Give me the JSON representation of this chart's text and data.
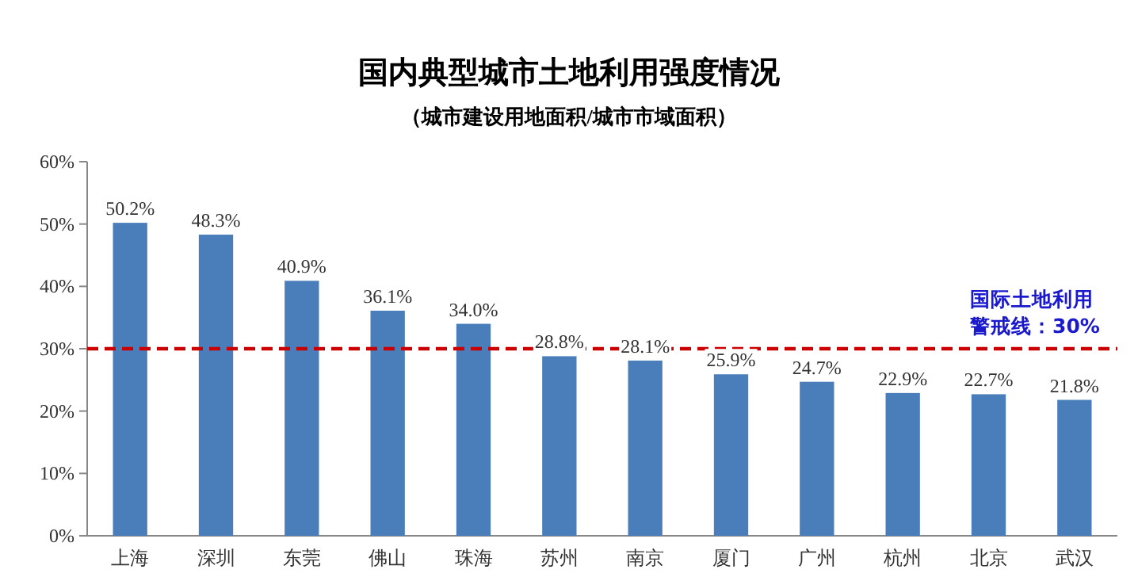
{
  "chart_data": {
    "type": "bar",
    "title": "国内典型城市土地利用强度情况",
    "subtitle": "（城市建设用地面积/城市市域面积）",
    "categories": [
      "上海",
      "深圳",
      "东莞",
      "佛山",
      "珠海",
      "苏州",
      "南京",
      "厦门",
      "广州",
      "杭州",
      "北京",
      "武汉"
    ],
    "series": [
      {
        "color": "#4a7ebb",
        "values": [
          50.2,
          48.3,
          40.9,
          36.1,
          34.0,
          28.8,
          28.1,
          25.9,
          24.7,
          22.9,
          22.7,
          21.8
        ],
        "value_labels": [
          "50.2%",
          "48.3%",
          "40.9%",
          "36.1%",
          "34.0%",
          "28.8%",
          "28.1%",
          "25.9%",
          "24.7%",
          "22.9%",
          "22.7%",
          "21.8%"
        ]
      }
    ],
    "ylim": [
      0,
      60
    ],
    "yticks": [
      {
        "value": 0,
        "label": "0%"
      },
      {
        "value": 10,
        "label": "10%"
      },
      {
        "value": 20,
        "label": "20%"
      },
      {
        "value": 30,
        "label": "30%"
      },
      {
        "value": 40,
        "label": "40%"
      },
      {
        "value": 50,
        "label": "50%"
      },
      {
        "value": 60,
        "label": "60%"
      }
    ],
    "ref_lines": [
      {
        "axis": "y",
        "value": 30,
        "label": "国际土地利用警戒线：30%",
        "color": "#cc0000",
        "line_style": "dashed"
      }
    ]
  }
}
